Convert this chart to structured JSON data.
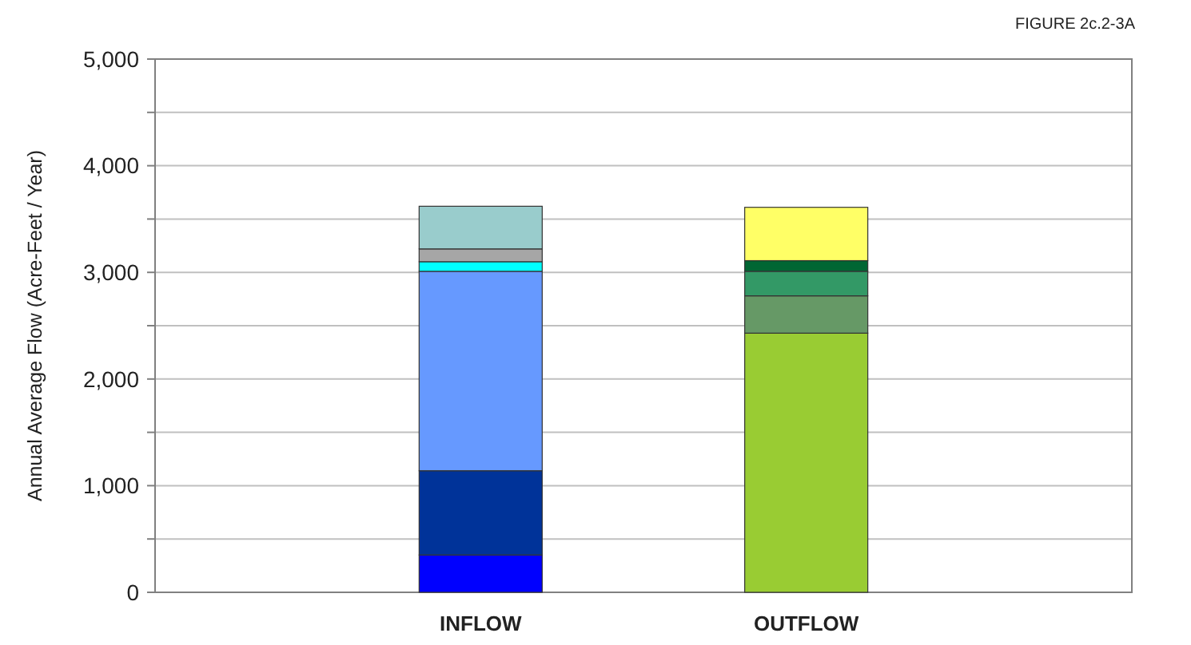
{
  "chart_data": {
    "type": "bar",
    "stacked": true,
    "ylabel": "Annual Average Flow (Acre-Feet / Year)",
    "annotations": [
      "FIGURE 2c.2-3A"
    ],
    "categories": [
      "INFLOW",
      "OUTFLOW"
    ],
    "series": [
      {
        "color": "#0000ff",
        "values": [
          350,
          null
        ]
      },
      {
        "color": "#003399",
        "values": [
          790,
          null
        ]
      },
      {
        "color": "#6699ff",
        "values": [
          1870,
          null
        ]
      },
      {
        "color": "#00ffff",
        "values": [
          90,
          null
        ]
      },
      {
        "color": "#a6a6a6",
        "values": [
          120,
          null
        ]
      },
      {
        "color": "#99cccc",
        "values": [
          400,
          null
        ]
      },
      {
        "color": "#99cc33",
        "values": [
          null,
          2430
        ]
      },
      {
        "color": "#669966",
        "values": [
          null,
          350
        ]
      },
      {
        "color": "#339966",
        "values": [
          null,
          230
        ]
      },
      {
        "color": "#006633",
        "values": [
          null,
          100
        ]
      },
      {
        "color": "#ffff66",
        "values": [
          null,
          500
        ]
      }
    ],
    "ylim": [
      0,
      5000
    ],
    "yticks": [
      0,
      {
        "value": 500,
        "label": null
      },
      {
        "value": 1000,
        "label": "1,000"
      },
      {
        "value": 1500,
        "label": null
      },
      {
        "value": 2000,
        "label": "2,000"
      },
      {
        "value": 2500,
        "label": null
      },
      {
        "value": 3000,
        "label": "3,000"
      },
      {
        "value": 3500,
        "label": null
      },
      {
        "value": 4000,
        "label": "4,000"
      },
      {
        "value": 4500,
        "label": null
      },
      {
        "value": 5000,
        "label": "5,000"
      }
    ],
    "grid": "y"
  }
}
